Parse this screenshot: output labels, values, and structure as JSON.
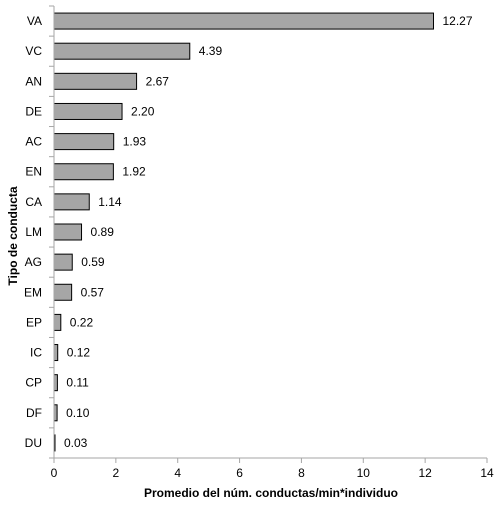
{
  "chart_data": {
    "type": "bar",
    "orientation": "horizontal",
    "categories": [
      "VA",
      "VC",
      "AN",
      "DE",
      "AC",
      "EN",
      "CA",
      "LM",
      "AG",
      "EM",
      "EP",
      "IC",
      "CP",
      "DF",
      "DU"
    ],
    "values": [
      12.27,
      4.39,
      2.67,
      2.2,
      1.93,
      1.92,
      1.14,
      0.89,
      0.59,
      0.57,
      0.22,
      0.12,
      0.11,
      0.1,
      0.03
    ],
    "value_labels": [
      "12.27",
      "4.39",
      "2.67",
      "2.20",
      "1.93",
      "1.92",
      "1.14",
      "0.89",
      "0.59",
      "0.57",
      "0.22",
      "0.12",
      "0.11",
      "0.10",
      "0.03"
    ],
    "xlabel": "Promedio del núm. conductas/min*individuo",
    "ylabel": "Tipo de conducta",
    "xlim": [
      0,
      14
    ],
    "xticks": [
      "0",
      "2",
      "4",
      "6",
      "8",
      "10",
      "12",
      "14"
    ],
    "grid": false,
    "legend": "none",
    "colors": {
      "bar_fill": "#a6a6a6",
      "bar_stroke": "#000000",
      "axis": "#a6a6a6"
    }
  }
}
